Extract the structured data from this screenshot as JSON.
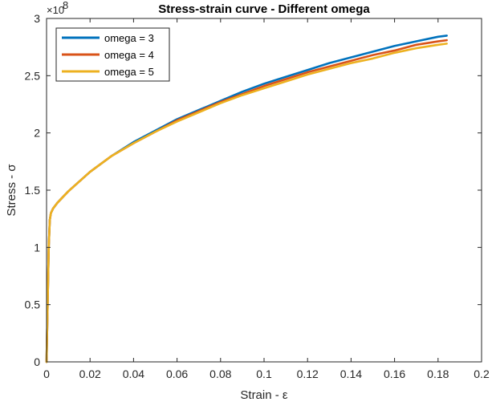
{
  "chart_data": {
    "type": "line",
    "title": "Stress-strain curve - Different omega",
    "xlabel": "Strain - ε",
    "ylabel": "Stress - σ",
    "y_exponent_base": "×10",
    "y_exponent_power": "8",
    "xlim": [
      0,
      0.2
    ],
    "ylim": [
      0,
      3
    ],
    "x_ticks": [
      0,
      0.02,
      0.04,
      0.06,
      0.08,
      0.1,
      0.12,
      0.14,
      0.16,
      0.18,
      0.2
    ],
    "x_tick_labels": [
      "0",
      "0.02",
      "0.04",
      "0.06",
      "0.08",
      "0.1",
      "0.12",
      "0.14",
      "0.16",
      "0.18",
      "0.2"
    ],
    "y_ticks": [
      0,
      0.5,
      1,
      1.5,
      2,
      2.5,
      3
    ],
    "y_tick_labels": [
      "0",
      "0.5",
      "1",
      "1.5",
      "2",
      "2.5",
      "3"
    ],
    "grid": false,
    "legend_position": "top-left",
    "series": [
      {
        "name": "omega = 3",
        "color": "#0072BD",
        "x": [
          0,
          0.0005,
          0.001,
          0.0015,
          0.002,
          0.003,
          0.005,
          0.01,
          0.02,
          0.03,
          0.04,
          0.05,
          0.06,
          0.07,
          0.08,
          0.09,
          0.1,
          0.11,
          0.12,
          0.13,
          0.14,
          0.15,
          0.16,
          0.17,
          0.18,
          0.184
        ],
        "y": [
          0,
          0.5,
          1.0,
          1.24,
          1.3,
          1.34,
          1.39,
          1.49,
          1.66,
          1.8,
          1.92,
          2.02,
          2.12,
          2.2,
          2.28,
          2.36,
          2.43,
          2.49,
          2.55,
          2.61,
          2.66,
          2.71,
          2.76,
          2.8,
          2.84,
          2.85
        ]
      },
      {
        "name": "omega = 4",
        "color": "#D95319",
        "x": [
          0,
          0.0005,
          0.001,
          0.0015,
          0.002,
          0.003,
          0.005,
          0.01,
          0.02,
          0.03,
          0.04,
          0.05,
          0.06,
          0.07,
          0.08,
          0.09,
          0.1,
          0.11,
          0.12,
          0.13,
          0.14,
          0.15,
          0.16,
          0.17,
          0.18,
          0.184
        ],
        "y": [
          0,
          0.5,
          1.0,
          1.24,
          1.3,
          1.34,
          1.39,
          1.49,
          1.66,
          1.8,
          1.91,
          2.01,
          2.11,
          2.19,
          2.27,
          2.34,
          2.41,
          2.47,
          2.53,
          2.58,
          2.63,
          2.68,
          2.72,
          2.77,
          2.8,
          2.81
        ]
      },
      {
        "name": "omega = 5",
        "color": "#EDB120",
        "x": [
          0,
          0.0005,
          0.001,
          0.0015,
          0.002,
          0.003,
          0.005,
          0.01,
          0.02,
          0.03,
          0.04,
          0.05,
          0.06,
          0.07,
          0.08,
          0.09,
          0.1,
          0.11,
          0.12,
          0.13,
          0.14,
          0.15,
          0.16,
          0.17,
          0.18,
          0.184
        ],
        "y": [
          0,
          0.5,
          1.0,
          1.24,
          1.3,
          1.34,
          1.39,
          1.49,
          1.66,
          1.8,
          1.91,
          2.01,
          2.1,
          2.18,
          2.26,
          2.33,
          2.39,
          2.45,
          2.51,
          2.56,
          2.61,
          2.65,
          2.7,
          2.74,
          2.77,
          2.78
        ]
      }
    ]
  }
}
